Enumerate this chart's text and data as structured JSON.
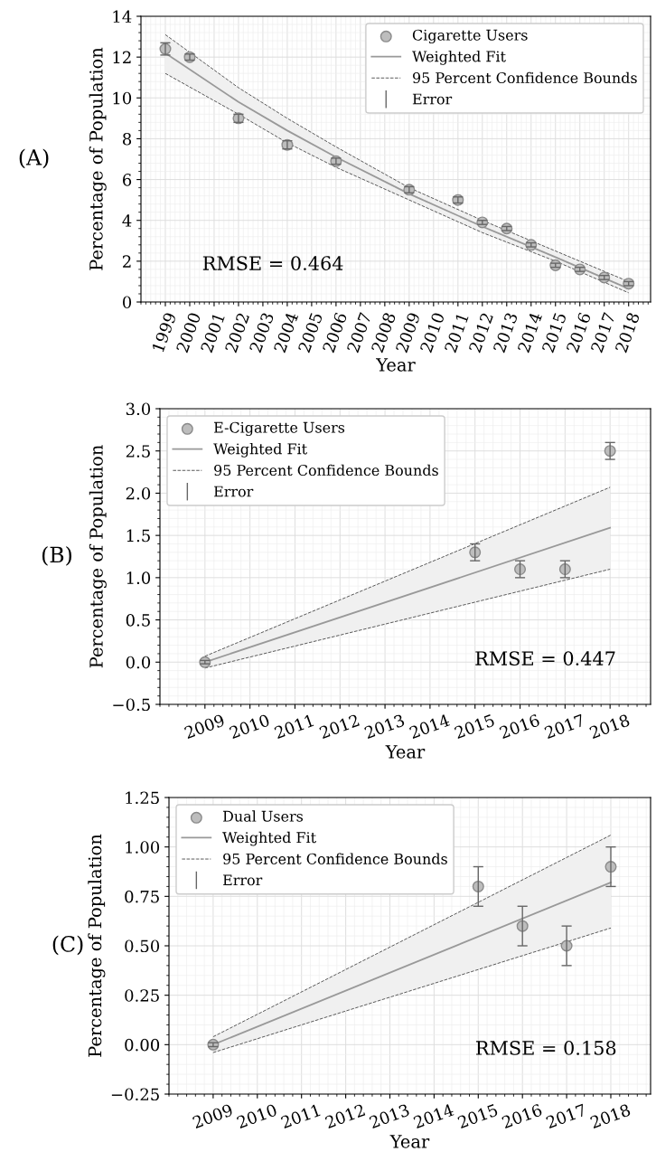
{
  "chart_data": [
    {
      "type": "scatter",
      "title": "(A)",
      "xlabel": "Year",
      "ylabel": "Percentage of Population",
      "annotations": [
        "RMSE = 0.464"
      ],
      "xlim": [
        1998,
        2018.9
      ],
      "xticks": [
        1999,
        2000,
        2001,
        2002,
        2003,
        2004,
        2005,
        2006,
        2007,
        2008,
        2009,
        2010,
        2011,
        2012,
        2013,
        2014,
        2015,
        2016,
        2017,
        2018
      ],
      "ylim": [
        0,
        14
      ],
      "yticks": [
        0,
        2,
        4,
        6,
        8,
        10,
        12,
        14
      ],
      "grid": true,
      "legend": "top right",
      "series": [
        {
          "name": "Cigarette Users",
          "marker": "circle",
          "color": "#bdbdbd",
          "x": [
            1999,
            2000,
            2002,
            2004,
            2006,
            2009,
            2011,
            2012,
            2013,
            2014,
            2015,
            2016,
            2017,
            2018
          ],
          "values": [
            12.4,
            12.0,
            9.0,
            7.7,
            6.9,
            5.5,
            5.0,
            3.9,
            3.6,
            2.8,
            1.8,
            1.6,
            1.2,
            0.9
          ],
          "errors": [
            0.3,
            0.15,
            0.2,
            0.2,
            0.15,
            0.15,
            0.15,
            0.1,
            0.1,
            0.1,
            0.1,
            0.1,
            0.1,
            0.1
          ]
        },
        {
          "name": "Weighted Fit",
          "type": "line",
          "color": "#999999",
          "x": [
            1999,
            2002,
            2004,
            2006,
            2009,
            2012,
            2015,
            2018
          ],
          "values": [
            12.2,
            9.8,
            8.4,
            7.1,
            5.3,
            3.7,
            2.2,
            0.65
          ],
          "lower": [
            11.2,
            9.2,
            7.8,
            6.6,
            5.0,
            3.4,
            2.0,
            0.45
          ],
          "upper": [
            13.1,
            10.5,
            9.0,
            7.6,
            5.6,
            4.0,
            2.5,
            1.0
          ]
        },
        {
          "name": "95 Percent Confidence Bounds",
          "type": "line",
          "line_style": "dashed",
          "color": "#555555",
          "x": [
            1999,
            2002,
            2004,
            2006,
            2009,
            2012,
            2015,
            2018
          ],
          "values": [
            13.1,
            10.5,
            9.0,
            7.6,
            5.6,
            4.0,
            2.5,
            1.0
          ]
        },
        {
          "type": "line",
          "line_style": "dashed",
          "color": "#555555",
          "x": [
            1999,
            2002,
            2004,
            2006,
            2009,
            2012,
            2015,
            2018
          ],
          "values": [
            11.2,
            9.2,
            7.8,
            6.6,
            5.0,
            3.4,
            2.0,
            0.45
          ]
        },
        {
          "name": "Error",
          "type": "scatter",
          "marker": "none",
          "color": "#666666"
        }
      ]
    },
    {
      "type": "scatter",
      "title": "(B)",
      "xlabel": "Year",
      "ylabel": "Percentage of Population",
      "annotations": [
        "RMSE = 0.447"
      ],
      "xlim": [
        2008,
        2018.9
      ],
      "xticks": [
        2009,
        2010,
        2011,
        2012,
        2013,
        2014,
        2015,
        2016,
        2017,
        2018
      ],
      "ylim": [
        -0.5,
        3.0
      ],
      "yticks": [
        {
          "value": -0.5,
          "label": "−0.5"
        },
        {
          "value": 0.0,
          "label": "0.0"
        },
        {
          "value": 0.5,
          "label": "0.5"
        },
        {
          "value": 1.0,
          "label": "1.0"
        },
        {
          "value": 1.5,
          "label": "1.5"
        },
        {
          "value": 2.0,
          "label": "2.0"
        },
        {
          "value": 2.5,
          "label": "2.5"
        },
        {
          "value": 3.0,
          "label": "3.0"
        }
      ],
      "grid": true,
      "legend": "top left",
      "series": [
        {
          "name": "E-Cigarette Users",
          "marker": "circle",
          "color": "#bdbdbd",
          "x": [
            2009,
            2015,
            2016,
            2017,
            2018
          ],
          "values": [
            0.0,
            1.3,
            1.1,
            1.1,
            2.5
          ],
          "errors": [
            0.02,
            0.1,
            0.1,
            0.1,
            0.1
          ]
        },
        {
          "name": "Weighted Fit",
          "type": "line",
          "color": "#999999",
          "x": [
            2009,
            2018
          ],
          "values": [
            0.0,
            1.59
          ],
          "lower": [
            -0.07,
            1.1
          ],
          "upper": [
            0.07,
            2.07
          ]
        },
        {
          "name": "95 Percent Confidence Bounds",
          "type": "line",
          "line_style": "dashed",
          "color": "#555555",
          "x": [
            2009,
            2018
          ],
          "values": [
            0.07,
            2.07
          ]
        },
        {
          "type": "line",
          "line_style": "dashed",
          "color": "#555555",
          "x": [
            2009,
            2018
          ],
          "values": [
            -0.07,
            1.1
          ]
        },
        {
          "name": "Error",
          "type": "scatter",
          "marker": "none",
          "color": "#666666"
        }
      ]
    },
    {
      "type": "scatter",
      "title": "(C)",
      "xlabel": "Year",
      "ylabel": "Percentage of Population",
      "annotations": [
        "RMSE = 0.158"
      ],
      "xlim": [
        2008,
        2018.9
      ],
      "xticks": [
        2009,
        2010,
        2011,
        2012,
        2013,
        2014,
        2015,
        2016,
        2017,
        2018
      ],
      "ylim": [
        -0.25,
        1.25
      ],
      "yticks": [
        {
          "value": -0.25,
          "label": "−0.25"
        },
        {
          "value": 0.0,
          "label": "0.00"
        },
        {
          "value": 0.25,
          "label": "0.25"
        },
        {
          "value": 0.5,
          "label": "0.50"
        },
        {
          "value": 0.75,
          "label": "0.75"
        },
        {
          "value": 1.0,
          "label": "1.00"
        },
        {
          "value": 1.25,
          "label": "1.25"
        }
      ],
      "grid": true,
      "legend": "top left",
      "series": [
        {
          "name": "Dual Users",
          "marker": "circle",
          "color": "#bdbdbd",
          "x": [
            2009,
            2015,
            2016,
            2017,
            2018
          ],
          "values": [
            0.0,
            0.8,
            0.6,
            0.5,
            0.9
          ],
          "errors": [
            0.01,
            0.1,
            0.1,
            0.1,
            0.1
          ]
        },
        {
          "name": "Weighted Fit",
          "type": "line",
          "color": "#999999",
          "x": [
            2009,
            2018
          ],
          "values": [
            0.0,
            0.82
          ],
          "lower": [
            -0.04,
            0.59
          ],
          "upper": [
            0.04,
            1.06
          ]
        },
        {
          "name": "95 Percent Confidence Bounds",
          "type": "line",
          "line_style": "dashed",
          "color": "#555555",
          "x": [
            2009,
            2018
          ],
          "values": [
            0.04,
            1.06
          ]
        },
        {
          "type": "line",
          "line_style": "dashed",
          "color": "#555555",
          "x": [
            2009,
            2018
          ],
          "values": [
            -0.04,
            0.59
          ]
        },
        {
          "name": "Error",
          "type": "scatter",
          "marker": "none",
          "color": "#666666"
        }
      ]
    }
  ]
}
